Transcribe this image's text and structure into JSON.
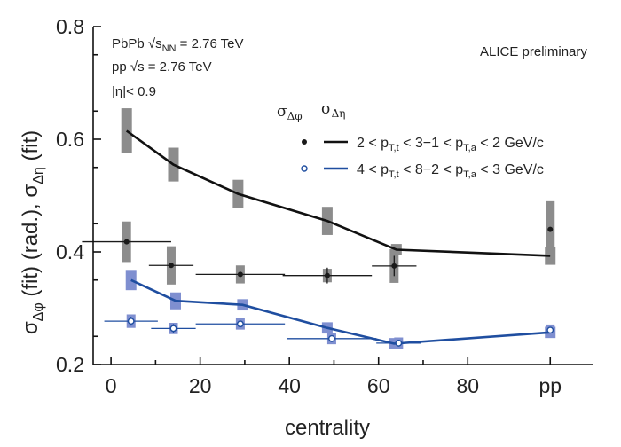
{
  "chart_data": {
    "type": "scatter",
    "xlabel": "centrality",
    "ylabel_main": "σ",
    "ylabel_sub1": "Δφ",
    "ylabel_mid": " (fit) (rad.), σ",
    "ylabel_sub2": "Δη",
    "ylabel_tail": " (fit)",
    "xlim": [
      -4,
      108
    ],
    "ylim": [
      0.2,
      0.8
    ],
    "x_ticks": [
      {
        "value": 0,
        "label": "0"
      },
      {
        "value": 20,
        "label": "20"
      },
      {
        "value": 40,
        "label": "40"
      },
      {
        "value": 60,
        "label": "60"
      },
      {
        "value": 80,
        "label": "80"
      },
      {
        "value": 98.5,
        "label": "pp"
      }
    ],
    "y_ticks": [
      {
        "value": 0.2,
        "label": "0.2"
      },
      {
        "value": 0.4,
        "label": "0.4"
      },
      {
        "value": 0.6,
        "label": "0.6"
      },
      {
        "value": 0.8,
        "label": "0.8"
      }
    ],
    "annotations": {
      "line1": "PbPb √s",
      "line1_sub": "NN",
      "line1_tail": " = 2.76 TeV",
      "line2": "pp √s = 2.76 TeV",
      "line3": "|η|< 0.9",
      "preliminary": "ALICE preliminary"
    },
    "legend": {
      "head_phi": "σ",
      "head_phi_sub": "Δφ",
      "head_eta": "σ",
      "head_eta_sub": "Δη",
      "entry1": "2 < p",
      "entry1_s1": "T,t",
      "entry1_m": " < 3−1 < p",
      "entry1_s2": "T,a",
      "entry1_t": " < 2 GeV/c",
      "entry2": "4 < p",
      "entry2_s1": "T,t",
      "entry2_m": " < 8−2 < p",
      "entry2_s2": "T,a",
      "entry2_t": " < 3 GeV/c"
    },
    "series": [
      {
        "key": "black_phi",
        "style": "filled-dot",
        "color": "#1a1a1a",
        "sys_color": "#8c8c8c",
        "points": [
          {
            "x": 3.5,
            "y": 0.418,
            "xerr": 10,
            "yerr": 0.004,
            "sys": 0.036
          },
          {
            "x": 13.5,
            "y": 0.376,
            "xerr": 5,
            "yerr": 0.004,
            "sys": 0.034
          },
          {
            "x": 29,
            "y": 0.36,
            "xerr": 10,
            "yerr": 0.004,
            "sys": 0.016
          },
          {
            "x": 48.5,
            "y": 0.358,
            "xerr": 10,
            "yerr": 0.014,
            "sys": 0.012
          },
          {
            "x": 63.5,
            "y": 0.375,
            "xerr": 5,
            "yerr": 0.018,
            "sys": 0.03
          },
          {
            "x": 98.5,
            "y": 0.44,
            "xerr": 0,
            "yerr": 0,
            "sys": 0.05
          }
        ]
      },
      {
        "key": "blue_phi",
        "style": "open-dot",
        "color": "#1f4ea0",
        "sys_color": "#7f8fd0",
        "points": [
          {
            "x": 4.5,
            "y": 0.277,
            "xerr": 6,
            "yerr": 0.008,
            "sys": 0.012
          },
          {
            "x": 14,
            "y": 0.264,
            "xerr": 5,
            "yerr": 0.008,
            "sys": 0.01
          },
          {
            "x": 29,
            "y": 0.272,
            "xerr": 10,
            "yerr": 0.006,
            "sys": 0.01
          },
          {
            "x": 49.5,
            "y": 0.246,
            "xerr": 10,
            "yerr": 0.006,
            "sys": 0.01
          },
          {
            "x": 64.5,
            "y": 0.238,
            "xerr": 5,
            "yerr": 0.006,
            "sys": 0.01
          },
          {
            "x": 98.5,
            "y": 0.261,
            "xerr": 0,
            "yerr": 0,
            "sys": 0.01
          }
        ]
      },
      {
        "key": "black_eta",
        "style": "line",
        "color": "#111111",
        "sys_color": "#8c8c8c",
        "points": [
          {
            "x": 3.5,
            "y": 0.615,
            "sys": 0.04
          },
          {
            "x": 14,
            "y": 0.555,
            "sys": 0.03
          },
          {
            "x": 28.5,
            "y": 0.503,
            "sys": 0.025
          },
          {
            "x": 48.5,
            "y": 0.455,
            "sys": 0.025
          },
          {
            "x": 64,
            "y": 0.404,
            "sys": 0.01
          },
          {
            "x": 98.5,
            "y": 0.393,
            "sys": 0.016
          }
        ]
      },
      {
        "key": "blue_eta",
        "style": "line",
        "color": "#1f4ea0",
        "sys_color": "#7f8fd0",
        "points": [
          {
            "x": 4.5,
            "y": 0.35,
            "sys": 0.018
          },
          {
            "x": 14.5,
            "y": 0.313,
            "sys": 0.015
          },
          {
            "x": 29.5,
            "y": 0.306,
            "sys": 0.01
          },
          {
            "x": 48.5,
            "y": 0.265,
            "sys": 0.01
          },
          {
            "x": 63.5,
            "y": 0.237,
            "sys": 0.01
          },
          {
            "x": 98.5,
            "y": 0.257,
            "sys": 0.01
          }
        ]
      }
    ]
  }
}
